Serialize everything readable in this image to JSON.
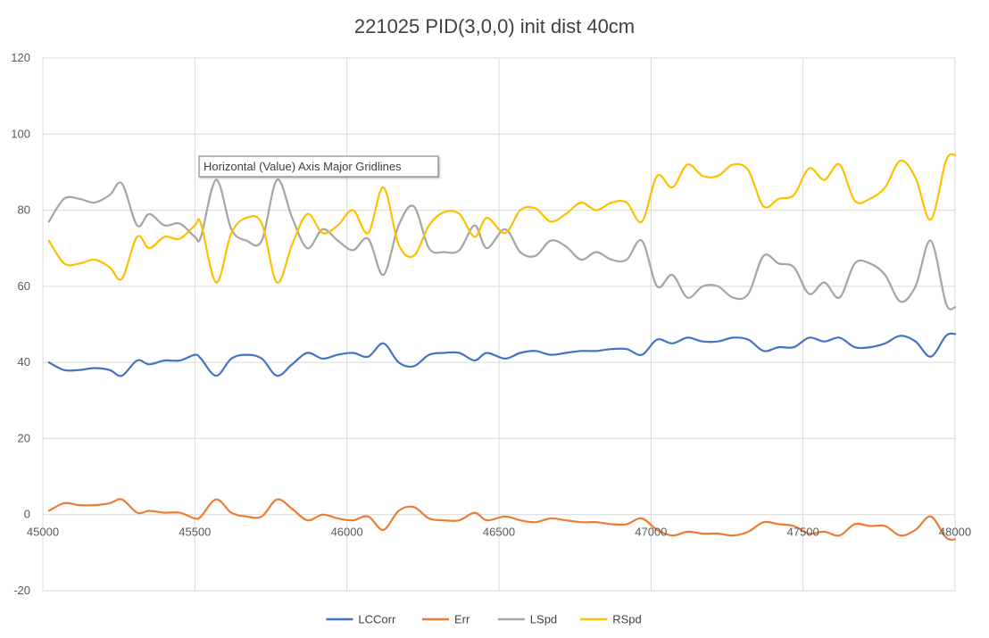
{
  "chart_data": {
    "type": "line",
    "title": "221025 PID(3,0,0) init dist 40cm",
    "xlabel": "",
    "ylabel": "",
    "xlim": [
      45000,
      48000
    ],
    "ylim": [
      -20,
      120
    ],
    "x_ticks": [
      45000,
      45500,
      46000,
      46500,
      47000,
      47500,
      48000
    ],
    "y_ticks": [
      -20,
      0,
      20,
      40,
      60,
      80,
      100,
      120
    ],
    "grid": true,
    "legend_position": "bottom",
    "tooltip": "Horizontal (Value) Axis Major Gridlines",
    "series": [
      {
        "name": "LCCorr",
        "color": "#4472C4",
        "x": [
          45020,
          45070,
          45120,
          45170,
          45220,
          45260,
          45310,
          45350,
          45400,
          45450,
          45500,
          45520,
          45570,
          45620,
          45670,
          45720,
          45770,
          45820,
          45870,
          45920,
          45970,
          46020,
          46070,
          46120,
          46170,
          46220,
          46270,
          46320,
          46370,
          46420,
          46460,
          46520,
          46570,
          46620,
          46670,
          46720,
          46770,
          46820,
          46870,
          46920,
          46970,
          47020,
          47070,
          47120,
          47170,
          47220,
          47270,
          47320,
          47370,
          47420,
          47470,
          47520,
          47570,
          47620,
          47670,
          47720,
          47770,
          47820,
          47870,
          47920,
          47970,
          48000
        ],
        "y": [
          40,
          38,
          38,
          38.5,
          38,
          36.5,
          40.5,
          39.5,
          40.5,
          40.5,
          42,
          41,
          36.5,
          41,
          42,
          41,
          36.5,
          39.5,
          42.5,
          41,
          42,
          42.5,
          41.5,
          45,
          40,
          39,
          42,
          42.5,
          42.5,
          40.5,
          42.5,
          41,
          42.5,
          43,
          42,
          42.5,
          43,
          43,
          43.5,
          43.5,
          42,
          46,
          45,
          46.5,
          45.5,
          45.5,
          46.5,
          46,
          43,
          44,
          44,
          46.5,
          45.5,
          46.5,
          44,
          44,
          45,
          47,
          45.5,
          41.5,
          47,
          47.5
        ]
      },
      {
        "name": "Err",
        "color": "#ED7D31",
        "x": [
          45020,
          45070,
          45120,
          45170,
          45220,
          45260,
          45310,
          45350,
          45400,
          45450,
          45500,
          45520,
          45570,
          45620,
          45670,
          45720,
          45770,
          45820,
          45870,
          45920,
          45970,
          46020,
          46070,
          46120,
          46170,
          46220,
          46270,
          46320,
          46370,
          46420,
          46460,
          46520,
          46570,
          46620,
          46670,
          46720,
          46770,
          46820,
          46870,
          46920,
          46970,
          47020,
          47070,
          47120,
          47170,
          47220,
          47270,
          47320,
          47370,
          47420,
          47470,
          47520,
          47570,
          47620,
          47670,
          47720,
          47770,
          47820,
          47870,
          47920,
          47970,
          48000
        ],
        "y": [
          1,
          3,
          2.5,
          2.5,
          3,
          4,
          0.5,
          1,
          0.5,
          0.5,
          -1,
          -0.5,
          4,
          0.5,
          -0.5,
          -0.5,
          4,
          1.5,
          -1.5,
          0,
          -1,
          -1.5,
          -0.5,
          -4,
          1,
          2,
          -1,
          -1.5,
          -1.5,
          0.5,
          -1.5,
          -0.5,
          -1.5,
          -2,
          -1,
          -1.5,
          -2,
          -2,
          -2.5,
          -2.5,
          -1,
          -4,
          -5.5,
          -4.5,
          -5,
          -5,
          -5.5,
          -4.5,
          -2,
          -2.5,
          -3,
          -5,
          -4.5,
          -5.5,
          -2.5,
          -3,
          -3,
          -5.5,
          -4,
          -0.5,
          -6,
          -6.5
        ]
      },
      {
        "name": "LSpd",
        "color": "#A5A5A5",
        "x": [
          45020,
          45070,
          45120,
          45170,
          45220,
          45260,
          45310,
          45350,
          45400,
          45450,
          45500,
          45520,
          45570,
          45620,
          45670,
          45720,
          45770,
          45820,
          45870,
          45920,
          45970,
          46020,
          46070,
          46120,
          46170,
          46220,
          46270,
          46320,
          46370,
          46420,
          46460,
          46520,
          46570,
          46620,
          46670,
          46720,
          46770,
          46820,
          46870,
          46920,
          46970,
          47020,
          47070,
          47120,
          47170,
          47220,
          47270,
          47320,
          47370,
          47420,
          47470,
          47520,
          47570,
          47620,
          47670,
          47720,
          47770,
          47820,
          47870,
          47920,
          47970,
          48000
        ],
        "y": [
          77,
          83,
          83,
          82,
          84,
          87,
          76,
          79,
          76,
          76.5,
          73,
          73,
          88,
          75,
          72,
          72,
          88,
          78,
          70,
          75,
          72,
          69.5,
          72.5,
          63,
          76,
          81,
          70,
          69,
          69.5,
          76,
          70,
          75,
          69,
          68,
          72,
          70.5,
          67,
          69,
          67,
          67,
          72,
          60,
          63,
          57,
          60,
          60,
          57,
          58,
          68,
          66,
          65,
          58,
          61,
          57,
          66,
          66,
          63,
          56,
          60,
          72,
          55.5,
          54.5
        ]
      },
      {
        "name": "RSpd",
        "color": "#FFC000",
        "x": [
          45020,
          45070,
          45120,
          45170,
          45220,
          45260,
          45310,
          45350,
          45400,
          45450,
          45500,
          45520,
          45570,
          45620,
          45670,
          45720,
          45770,
          45820,
          45870,
          45920,
          45970,
          46020,
          46070,
          46120,
          46170,
          46220,
          46270,
          46320,
          46370,
          46420,
          46460,
          46520,
          46570,
          46620,
          46670,
          46720,
          46770,
          46820,
          46870,
          46920,
          46970,
          47020,
          47070,
          47120,
          47170,
          47220,
          47270,
          47320,
          47370,
          47420,
          47470,
          47520,
          47570,
          47620,
          47670,
          47720,
          47770,
          47820,
          47870,
          47920,
          47970,
          48000
        ],
        "y": [
          72,
          66,
          66,
          67,
          65,
          62,
          73,
          70,
          73,
          72.5,
          76,
          76.5,
          61,
          74,
          78,
          76.5,
          61,
          71,
          79,
          74,
          76,
          80,
          74,
          86,
          71,
          68,
          76,
          79.5,
          79,
          73,
          78,
          74,
          80,
          80.5,
          77,
          79,
          82,
          80,
          82,
          82,
          77,
          89,
          86,
          92,
          89,
          89,
          92,
          90.5,
          81,
          83,
          84,
          91,
          88,
          92,
          82.5,
          83,
          86,
          93,
          88.5,
          77.5,
          93,
          94.5
        ]
      }
    ]
  }
}
